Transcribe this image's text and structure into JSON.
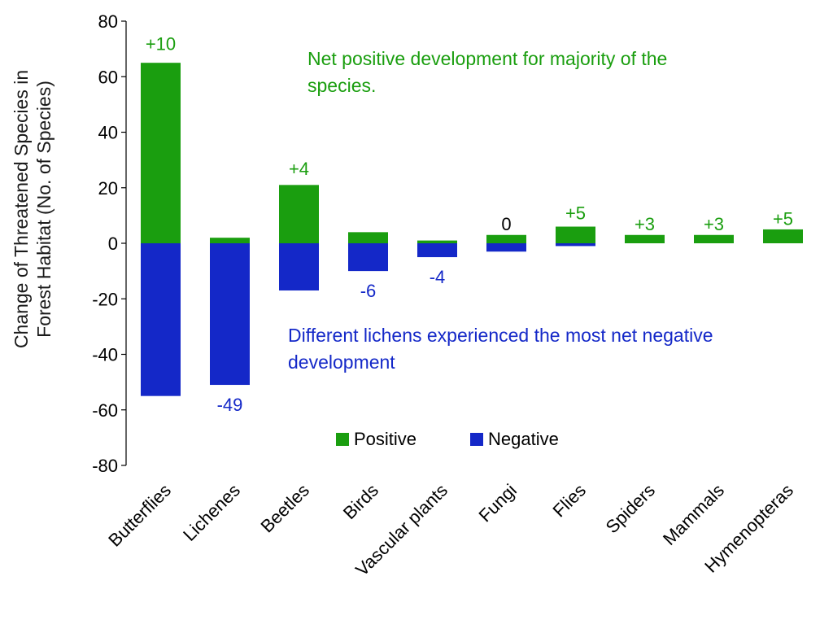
{
  "chart_data": {
    "type": "bar",
    "stacked": true,
    "ylabel_lines": [
      "Change of Threatened Species in",
      "Forest Habitat (No. of Species)"
    ],
    "ylim": [
      -80,
      80
    ],
    "yticks": [
      80,
      60,
      40,
      20,
      0,
      -20,
      -40,
      -60,
      -80
    ],
    "grid": false,
    "categories": [
      "Butterflies",
      "Lichenes",
      "Beetles",
      "Birds",
      "Vascular plants",
      "Fungi",
      "Flies",
      "Spiders",
      "Mammals",
      "Hymenopteras"
    ],
    "series": [
      {
        "name": "Positive",
        "color": "#1a9e0f",
        "values": [
          65,
          2,
          21,
          4,
          1,
          3,
          6,
          3,
          3,
          5
        ]
      },
      {
        "name": "Negative",
        "color": "#1428c8",
        "values": [
          -55,
          -51,
          -17,
          -10,
          -5,
          -3,
          -1,
          0,
          0,
          0
        ]
      }
    ],
    "net_labels": [
      {
        "category": "Butterflies",
        "text": "+10",
        "color": "#1a9e0f",
        "y": 72
      },
      {
        "category": "Lichenes",
        "text": "-49",
        "color": "#1428c8",
        "y": -58
      },
      {
        "category": "Beetles",
        "text": "+4",
        "color": "#1a9e0f",
        "y": 27
      },
      {
        "category": "Birds",
        "text": "-6",
        "color": "#1428c8",
        "y": -17
      },
      {
        "category": "Vascular plants",
        "text": "-4",
        "color": "#1428c8",
        "y": -12
      },
      {
        "category": "Fungi",
        "text": "0",
        "color": "#000000",
        "y": 7
      },
      {
        "category": "Flies",
        "text": "+5",
        "color": "#1a9e0f",
        "y": 11
      },
      {
        "category": "Spiders",
        "text": "+3",
        "color": "#1a9e0f",
        "y": 7
      },
      {
        "category": "Mammals",
        "text": "+3",
        "color": "#1a9e0f",
        "y": 7
      },
      {
        "category": "Hymenopteras",
        "text": "+5",
        "color": "#1a9e0f",
        "y": 9
      }
    ],
    "annotations": [
      {
        "lines": [
          "Net positive development for majority of the",
          "species."
        ],
        "color": "#1a9e0f"
      },
      {
        "lines": [
          "Different lichens experienced the most net negative",
          "development"
        ],
        "color": "#1428c8"
      }
    ],
    "legend": {
      "placement": "bottom-center",
      "entries": [
        "Positive",
        "Negative"
      ]
    }
  }
}
